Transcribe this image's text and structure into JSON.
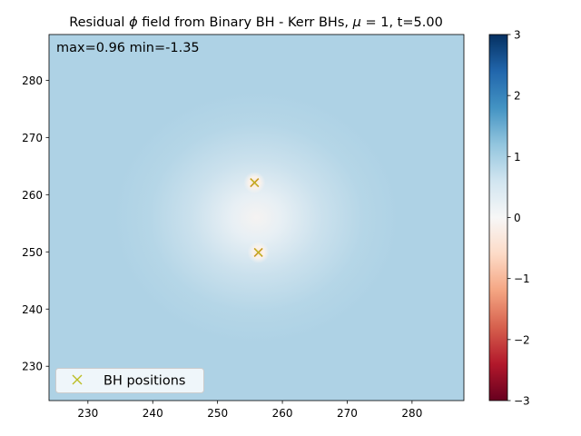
{
  "chart_data": {
    "type": "heatmap",
    "title": "Residual ϕ field from Binary BH - Kerr BHs, μ = 1, t=5.00",
    "title_parts": {
      "prefix": "Residual ",
      "phi": "ϕ",
      "mid": " field from Binary BH - Kerr BHs, ",
      "mu": "μ",
      "mu_rest": " = 1",
      "suffix": ", t=5.00"
    },
    "annotation": "max=0.96 min=-1.35",
    "stats": {
      "max": 0.96,
      "min": -1.35
    },
    "xlim": [
      224,
      288
    ],
    "ylim": [
      224,
      288
    ],
    "x_ticks": [
      230,
      240,
      250,
      260,
      270,
      280
    ],
    "y_ticks": [
      230,
      240,
      250,
      260,
      270,
      280
    ],
    "colorbar": {
      "range": [
        -3,
        3
      ],
      "ticks": [
        3,
        2,
        1,
        0,
        -1,
        -2,
        -3
      ],
      "tick_labels": [
        "3",
        "2",
        "1",
        "0",
        "−1",
        "−2",
        "−3"
      ],
      "colormap": "RdBu"
    },
    "field": {
      "background_value": 0.96,
      "center": [
        256,
        256
      ],
      "dip_scale": 22
    },
    "bh_positions": [
      {
        "x": 255.7,
        "y": 262.1
      },
      {
        "x": 256.3,
        "y": 249.9
      }
    ],
    "bh_marker_color": "#bcbd22",
    "bh_marker_color_dark": "#c89a20",
    "legend": {
      "label": "BH positions",
      "location": "lower left"
    }
  }
}
